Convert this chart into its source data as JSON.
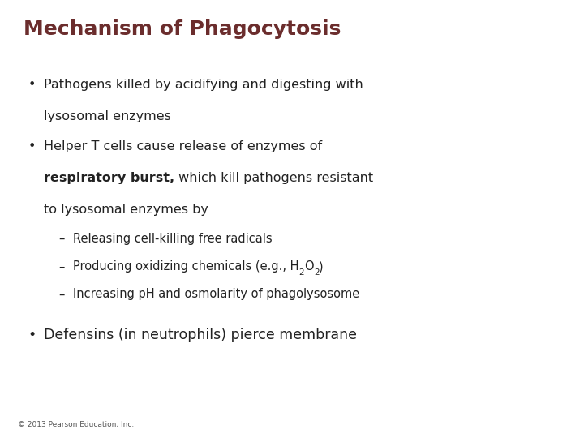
{
  "title": "Mechanism of Phagocytosis",
  "title_color": "#6B2D2D",
  "title_fontsize": 18,
  "title_fontweight": "bold",
  "background_color": "#FFFFFF",
  "text_color": "#222222",
  "body_fontsize": 11.5,
  "sub_fontsize": 10.5,
  "footer_text": "© 2013 Pearson Education, Inc.",
  "footer_fontsize": 6.5,
  "bullet1_line1": "Pathogens killed by acidifying and digesting with",
  "bullet1_line2": "lysosomal enzymes",
  "bullet2_line1": "Helper T cells cause release of enzymes of",
  "bullet2_bold": "respiratory burst,",
  "bullet2_after_bold": " which kill pathogens resistant",
  "bullet2_line3": "to lysosomal enzymes by",
  "sub1": "Releasing cell-killing free radicals",
  "sub2_pre": "Producing oxidizing chemicals (e.g., H",
  "sub3": "Increasing pH and osmolarity of phagolysosome",
  "bullet3": "Defensins (in neutrophils) pierce membrane"
}
